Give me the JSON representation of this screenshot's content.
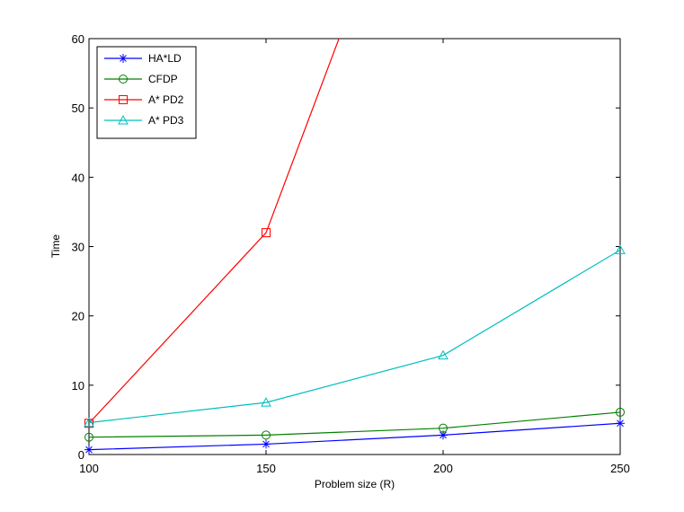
{
  "chart_data": {
    "type": "line",
    "title": "",
    "xlabel": "Problem size (R)",
    "ylabel": "Time",
    "xlim": [
      100,
      250
    ],
    "ylim": [
      0,
      60
    ],
    "xticks": [
      100,
      150,
      200,
      250
    ],
    "yticks": [
      0,
      10,
      20,
      30,
      40,
      50,
      60
    ],
    "grid": false,
    "legend_position": "top-left",
    "series": [
      {
        "name": "HA*LD",
        "color": "#0000ff",
        "marker": "asterisk",
        "x": [
          100,
          150,
          200,
          250
        ],
        "y": [
          0.7,
          1.5,
          2.8,
          4.5
        ]
      },
      {
        "name": "CFDP",
        "color": "#008000",
        "marker": "circle",
        "x": [
          100,
          150,
          200,
          250
        ],
        "y": [
          2.5,
          2.8,
          3.8,
          6.1
        ]
      },
      {
        "name": "A* PD2",
        "color": "#ff0000",
        "marker": "square",
        "x": [
          100,
          150,
          200
        ],
        "y": [
          4.5,
          32.0,
          100.0
        ]
      },
      {
        "name": "A* PD3",
        "color": "#00bfbf",
        "marker": "triangle",
        "x": [
          100,
          150,
          200,
          250
        ],
        "y": [
          4.6,
          7.5,
          14.3,
          29.5
        ]
      }
    ]
  }
}
